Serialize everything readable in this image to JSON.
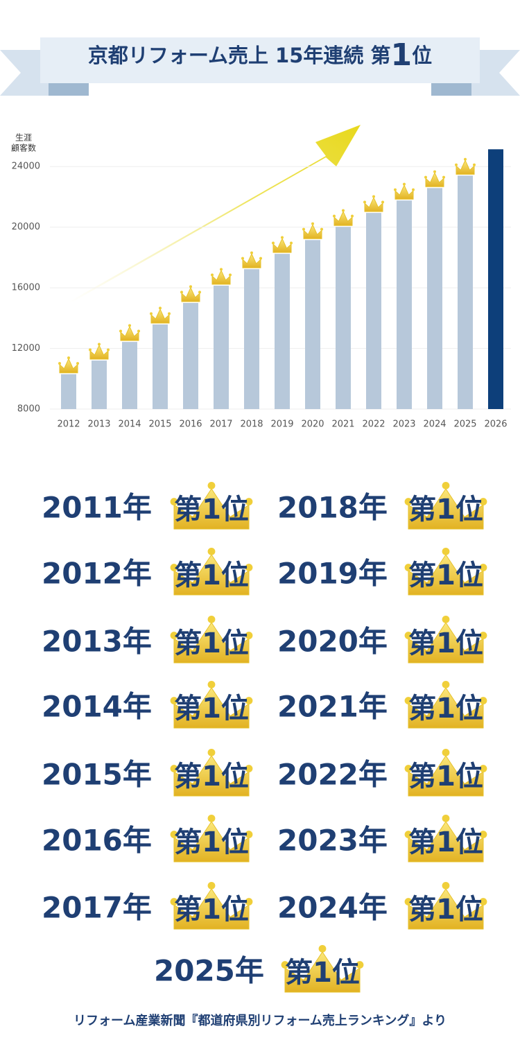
{
  "banner": {
    "title_prefix": "京都リフォーム売上 15年連続 第",
    "title_number": "1",
    "title_suffix": "位"
  },
  "chart_data": {
    "type": "bar",
    "y_label_lines": [
      "生涯",
      "顧客数"
    ],
    "categories": [
      "2012",
      "2013",
      "2014",
      "2015",
      "2016",
      "2017",
      "2018",
      "2019",
      "2020",
      "2021",
      "2022",
      "2023",
      "2024",
      "2025",
      "2026"
    ],
    "values": [
      10300,
      11200,
      12430,
      13580,
      15000,
      16140,
      17230,
      18240,
      19150,
      20020,
      20940,
      21760,
      22580,
      23400,
      25140
    ],
    "colors": [
      "#b7c8da",
      "#b7c8da",
      "#b7c8da",
      "#b7c8da",
      "#b7c8da",
      "#b7c8da",
      "#b7c8da",
      "#b7c8da",
      "#b7c8da",
      "#b7c8da",
      "#b7c8da",
      "#b7c8da",
      "#b7c8da",
      "#b7c8da",
      "#0d3f7a"
    ],
    "ylim": [
      8000,
      25200
    ],
    "yticks": [
      8000,
      12000,
      16000,
      20000,
      24000
    ],
    "grid": true
  },
  "rankings": [
    {
      "year": "2011年",
      "rank": "第1位"
    },
    {
      "year": "2012年",
      "rank": "第1位"
    },
    {
      "year": "2013年",
      "rank": "第1位"
    },
    {
      "year": "2014年",
      "rank": "第1位"
    },
    {
      "year": "2015年",
      "rank": "第1位"
    },
    {
      "year": "2016年",
      "rank": "第1位"
    },
    {
      "year": "2017年",
      "rank": "第1位"
    },
    {
      "year": "2018年",
      "rank": "第1位"
    },
    {
      "year": "2019年",
      "rank": "第1位"
    },
    {
      "year": "2020年",
      "rank": "第1位"
    },
    {
      "year": "2021年",
      "rank": "第1位"
    },
    {
      "year": "2022年",
      "rank": "第1位"
    },
    {
      "year": "2023年",
      "rank": "第1位"
    },
    {
      "year": "2024年",
      "rank": "第1位"
    },
    {
      "year": "2025年",
      "rank": "第1位"
    }
  ],
  "source": "リフォーム産業新聞『都道府県別リフォーム売上ランキング』より"
}
